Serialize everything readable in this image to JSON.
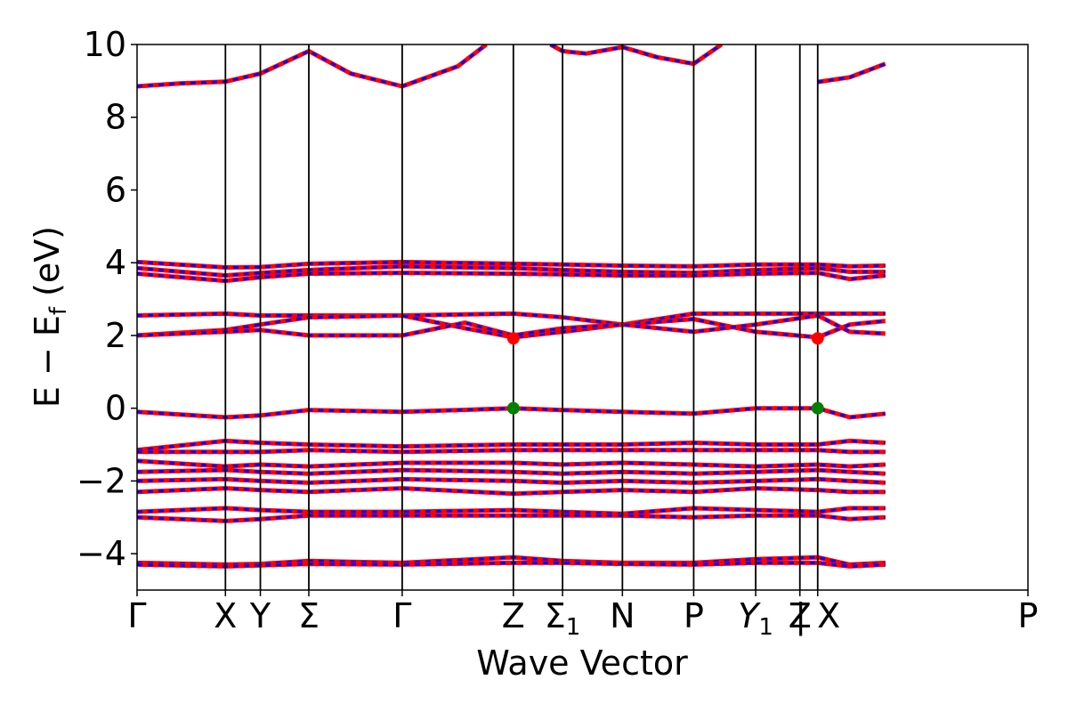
{
  "chart_data": {
    "type": "line",
    "title": "",
    "xlabel": "Wave Vector",
    "ylabel": "E − E",
    "ylabel_sub": "f",
    "ylabel_unit": " (eV)",
    "ylim": [
      -5,
      10
    ],
    "yticks": [
      -4,
      -2,
      0,
      2,
      4,
      6,
      8,
      10
    ],
    "ytick_labels": [
      "−4",
      "−2",
      "0",
      "2",
      "4",
      "6",
      "8",
      "10"
    ],
    "xlim": [
      0,
      12.5
    ],
    "kpoints": [
      {
        "x": 0,
        "label": "Γ"
      },
      {
        "x": 1.24,
        "label": "X"
      },
      {
        "x": 1.73,
        "label": "Y"
      },
      {
        "x": 2.41,
        "label": "Σ"
      },
      {
        "x": 3.72,
        "label": "Γ"
      },
      {
        "x": 5.28,
        "label": "Z"
      },
      {
        "x": 5.97,
        "label": "Σ",
        "sub": "1"
      },
      {
        "x": 6.81,
        "label": "N"
      },
      {
        "x": 7.81,
        "label": "P"
      },
      {
        "x": 8.68,
        "label": "Y",
        "sub": "1",
        "italic": true
      },
      {
        "x": 9.3,
        "label": "Z"
      },
      {
        "x": 9.55,
        "label": "| X"
      },
      {
        "x": 12.5,
        "label": "P"
      }
    ],
    "grid": false,
    "line_colors": {
      "spin_up": "#ff0000",
      "spin_down": "#0000ff"
    },
    "bands": [
      {
        "x": [
          0,
          0.6,
          1.24,
          1.73,
          2.41,
          3.0,
          3.72,
          4.5,
          4.9
        ],
        "y": [
          8.85,
          8.93,
          8.98,
          9.2,
          9.82,
          9.2,
          8.85,
          9.4,
          10.0
        ]
      },
      {
        "x": [
          5.8,
          5.97,
          6.3,
          6.81,
          7.3,
          7.81,
          8.2
        ],
        "y": [
          10.0,
          9.82,
          9.75,
          9.93,
          9.65,
          9.47,
          10.0
        ]
      },
      {
        "x": [
          9.55,
          10.0,
          10.5
        ],
        "y": [
          8.97,
          9.1,
          9.47
        ]
      },
      {
        "x": [
          0,
          1.24,
          1.73,
          2.41,
          3.72,
          5.28,
          5.97,
          6.81,
          7.81,
          8.68,
          9.55,
          10.0,
          10.5
        ],
        "y": [
          4.02,
          3.87,
          3.88,
          3.97,
          4.02,
          3.97,
          3.95,
          3.92,
          3.9,
          3.95,
          3.95,
          3.9,
          3.92
        ]
      },
      {
        "x": [
          0,
          1.24,
          1.73,
          2.41,
          3.72,
          5.28,
          5.97,
          6.81,
          7.81,
          8.68,
          9.55,
          10.0,
          10.5
        ],
        "y": [
          3.85,
          3.65,
          3.72,
          3.8,
          3.9,
          3.85,
          3.8,
          3.75,
          3.72,
          3.8,
          3.85,
          3.75,
          3.75
        ]
      },
      {
        "x": [
          0,
          1.24,
          1.73,
          2.41,
          3.72,
          5.28,
          5.97,
          6.81,
          7.81,
          8.68,
          9.55,
          10.0,
          10.5
        ],
        "y": [
          3.7,
          3.5,
          3.6,
          3.7,
          3.72,
          3.7,
          3.68,
          3.65,
          3.65,
          3.7,
          3.72,
          3.55,
          3.65
        ]
      },
      {
        "x": [
          0,
          1.24,
          1.73,
          2.41,
          3.72,
          5.28,
          5.97,
          6.81,
          7.81,
          8.68,
          9.55,
          10.0,
          10.5
        ],
        "y": [
          2.55,
          2.6,
          2.55,
          2.55,
          2.55,
          2.6,
          2.5,
          2.3,
          2.6,
          2.6,
          2.6,
          2.6,
          2.6
        ]
      },
      {
        "x": [
          0,
          1.24,
          1.73,
          2.41,
          3.72,
          4.6,
          5.28,
          5.97,
          6.81,
          7.81,
          8.68,
          9.55,
          10.0,
          10.5
        ],
        "y": [
          2.0,
          2.15,
          2.3,
          2.5,
          2.55,
          2.2,
          1.95,
          2.1,
          2.3,
          2.45,
          2.1,
          1.95,
          2.3,
          2.4
        ]
      },
      {
        "x": [
          0,
          1.24,
          1.73,
          2.41,
          3.72,
          4.6,
          5.28,
          5.97,
          6.81,
          7.81,
          8.68,
          9.55,
          10.0,
          10.5
        ],
        "y": [
          2.0,
          2.1,
          2.15,
          2.0,
          2.0,
          2.35,
          2.0,
          2.2,
          2.3,
          2.1,
          2.3,
          2.55,
          2.1,
          2.05
        ]
      },
      {
        "x": [
          0,
          1.24,
          1.73,
          2.41,
          3.72,
          5.28,
          5.97,
          6.81,
          7.81,
          8.68,
          9.55,
          10.0,
          10.5
        ],
        "y": [
          -0.1,
          -0.25,
          -0.2,
          -0.05,
          -0.1,
          0.0,
          -0.05,
          -0.1,
          -0.15,
          0.0,
          0.0,
          -0.25,
          -0.15
        ]
      },
      {
        "x": [
          0,
          1.24,
          1.73,
          2.41,
          3.72,
          5.28,
          5.97,
          6.81,
          7.81,
          8.68,
          9.55,
          10.0,
          10.5
        ],
        "y": [
          -1.15,
          -0.9,
          -0.95,
          -1.0,
          -1.05,
          -1.0,
          -1.0,
          -1.0,
          -0.95,
          -1.0,
          -1.0,
          -0.9,
          -0.95
        ]
      },
      {
        "x": [
          0,
          1.24,
          1.73,
          2.41,
          3.72,
          5.28,
          5.97,
          6.81,
          7.81,
          8.68,
          9.55,
          10.0,
          10.5
        ],
        "y": [
          -1.2,
          -1.2,
          -1.2,
          -1.15,
          -1.2,
          -1.15,
          -1.15,
          -1.15,
          -1.15,
          -1.15,
          -1.15,
          -1.2,
          -1.2
        ]
      },
      {
        "x": [
          0,
          1.24,
          1.73,
          2.41,
          3.72,
          5.28,
          5.97,
          6.81,
          7.81,
          8.68,
          9.55,
          10.0,
          10.5
        ],
        "y": [
          -1.45,
          -1.6,
          -1.55,
          -1.6,
          -1.5,
          -1.5,
          -1.55,
          -1.5,
          -1.55,
          -1.6,
          -1.55,
          -1.6,
          -1.55
        ]
      },
      {
        "x": [
          0,
          1.24,
          1.73,
          2.41,
          3.72,
          5.28,
          5.97,
          6.81,
          7.81,
          8.68,
          9.55,
          10.0,
          10.5
        ],
        "y": [
          -1.75,
          -1.7,
          -1.75,
          -1.8,
          -1.7,
          -1.75,
          -1.8,
          -1.75,
          -1.8,
          -1.75,
          -1.7,
          -1.75,
          -1.8
        ]
      },
      {
        "x": [
          0,
          1.24,
          1.73,
          2.41,
          3.72,
          5.28,
          5.97,
          6.81,
          7.81,
          8.68,
          9.55,
          10.0,
          10.5
        ],
        "y": [
          -2.0,
          -1.95,
          -2.0,
          -2.05,
          -1.95,
          -2.0,
          -2.05,
          -2.0,
          -2.05,
          -2.0,
          -1.95,
          -2.0,
          -2.05
        ]
      },
      {
        "x": [
          0,
          1.24,
          1.73,
          2.41,
          3.72,
          5.28,
          5.97,
          6.81,
          7.81,
          8.68,
          9.55,
          10.0,
          10.5
        ],
        "y": [
          -2.3,
          -2.2,
          -2.25,
          -2.3,
          -2.2,
          -2.35,
          -2.3,
          -2.25,
          -2.3,
          -2.2,
          -2.25,
          -2.3,
          -2.3
        ]
      },
      {
        "x": [
          0,
          1.24,
          1.73,
          2.41,
          3.72,
          5.28,
          5.97,
          6.81,
          7.81,
          8.68,
          9.55,
          10.0,
          10.5
        ],
        "y": [
          -2.85,
          -2.75,
          -2.8,
          -2.85,
          -2.85,
          -2.8,
          -2.85,
          -2.9,
          -2.75,
          -2.8,
          -2.85,
          -2.75,
          -2.75
        ]
      },
      {
        "x": [
          0,
          1.24,
          1.73,
          2.41,
          3.72,
          5.28,
          5.97,
          6.81,
          7.81,
          8.68,
          9.55,
          10.0,
          10.5
        ],
        "y": [
          -3.0,
          -3.1,
          -3.05,
          -2.95,
          -2.95,
          -2.95,
          -2.95,
          -2.95,
          -3.0,
          -2.95,
          -2.95,
          -3.05,
          -3.0
        ]
      },
      {
        "x": [
          0,
          1.24,
          1.73,
          2.41,
          3.72,
          5.28,
          5.97,
          6.81,
          7.81,
          8.68,
          9.55,
          10.0,
          10.5
        ],
        "y": [
          -4.25,
          -4.3,
          -4.28,
          -4.2,
          -4.25,
          -4.1,
          -4.2,
          -4.25,
          -4.25,
          -4.15,
          -4.1,
          -4.3,
          -4.25
        ]
      },
      {
        "x": [
          0,
          1.24,
          1.73,
          2.41,
          3.72,
          5.28,
          5.97,
          6.81,
          7.81,
          8.68,
          9.55,
          10.0,
          10.5
        ],
        "y": [
          -4.3,
          -4.35,
          -4.32,
          -4.28,
          -4.3,
          -4.25,
          -4.25,
          -4.28,
          -4.3,
          -4.25,
          -4.25,
          -4.35,
          -4.3
        ]
      }
    ],
    "markers": [
      {
        "x": 5.28,
        "y": 1.92,
        "color": "#ff0000"
      },
      {
        "x": 9.55,
        "y": 1.92,
        "color": "#ff0000"
      },
      {
        "x": 5.28,
        "y": 0.0,
        "color": "#008000"
      },
      {
        "x": 9.55,
        "y": 0.0,
        "color": "#008000"
      }
    ]
  }
}
